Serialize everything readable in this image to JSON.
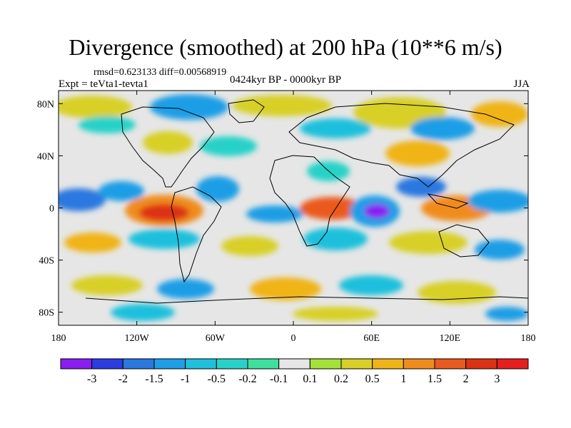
{
  "title": "Divergence (smoothed) at 200 hPa (10**6 m/s)",
  "stats": {
    "rmsd_label": "rmsd=",
    "rmsd": "0.623133",
    "diff_label": "diff=",
    "diff": "0.00568919"
  },
  "experiment": "Expt = teVta1-tevta1",
  "period": "0424kyr BP - 0000kyr BP",
  "season": "JJA",
  "lat_ticks": [
    "80N",
    "40N",
    "0",
    "40S",
    "80S"
  ],
  "lon_ticks": [
    "180",
    "120W",
    "60W",
    "0",
    "60E",
    "120E",
    "180"
  ],
  "colorbar": {
    "labels": [
      "-3",
      "-2",
      "-1.5",
      "-1",
      "-0.5",
      "-0.2",
      "-0.1",
      "0.1",
      "0.2",
      "0.5",
      "1",
      "1.5",
      "2",
      "3"
    ],
    "colors": [
      "#8a1ef0",
      "#2c3ce0",
      "#2a78e0",
      "#1e9ee6",
      "#1ec0dc",
      "#28d2c8",
      "#3ee0a0",
      "#e6e6e6",
      "#a6e03a",
      "#d8d028",
      "#f0b418",
      "#f08c1e",
      "#ea5a1e",
      "#dc3214",
      "#e61e1e"
    ]
  },
  "map": {
    "lon_range": [
      -180,
      180
    ],
    "lat_range": [
      -90,
      90
    ]
  }
}
